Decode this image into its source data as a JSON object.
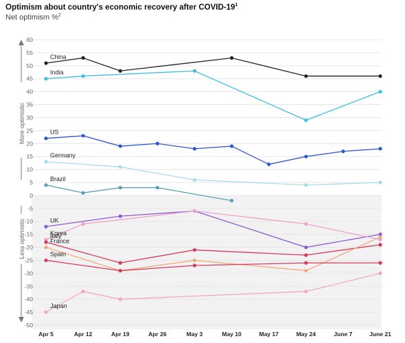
{
  "header": {
    "title": "Optimism about country's economic recovery after COVID-19",
    "title_sup": "1",
    "subtitle": "Net optimism %",
    "subtitle_sup": "2"
  },
  "chart_data": {
    "type": "line",
    "title": "Optimism about country's economic recovery after COVID-19",
    "ylabel": "Net optimism %",
    "ylim": [
      -50,
      60
    ],
    "yticks": [
      60,
      55,
      50,
      45,
      40,
      35,
      30,
      25,
      20,
      15,
      10,
      5,
      0,
      -5,
      -10,
      -15,
      -20,
      -25,
      -30,
      -35,
      -40,
      -45,
      -50
    ],
    "categories": [
      "Apr 5",
      "Apr 12",
      "Apr 19",
      "Apr 26",
      "May 3",
      "May 10",
      "May 17",
      "May 24",
      "June 7",
      "June 21"
    ],
    "side_labels": {
      "upper": "More optimistic",
      "lower": "Less optimistic"
    },
    "shading": "grey band below 0",
    "series": [
      {
        "name": "China",
        "color": "#222222",
        "values": [
          51,
          53,
          48,
          null,
          null,
          53,
          null,
          46,
          null,
          46
        ]
      },
      {
        "name": "India",
        "color": "#3bbfe0",
        "values": [
          45,
          46,
          null,
          null,
          48,
          null,
          null,
          29,
          null,
          40
        ]
      },
      {
        "name": "US",
        "color": "#2e55d0",
        "values": [
          22,
          23,
          19,
          20,
          18,
          19,
          12,
          15,
          17,
          18
        ]
      },
      {
        "name": "Germany",
        "color": "#a8dcec",
        "values": [
          13,
          null,
          11,
          null,
          6,
          null,
          null,
          4,
          null,
          5
        ]
      },
      {
        "name": "Brazil",
        "color": "#5a9db5",
        "values": [
          4,
          1,
          3,
          3,
          null,
          -2,
          null,
          null,
          null,
          null
        ]
      },
      {
        "name": "UK",
        "color": "#8a5ad0",
        "values": [
          -12,
          null,
          -8,
          null,
          -6,
          null,
          null,
          -20,
          null,
          -15
        ]
      },
      {
        "name": "Korea",
        "color": "#eea4c8",
        "values": [
          -17,
          -11,
          null,
          null,
          -6,
          null,
          null,
          -11,
          null,
          -17
        ]
      },
      {
        "name": "Italy",
        "color": "#d23a5c",
        "values": [
          -18,
          null,
          -26,
          null,
          -21,
          null,
          null,
          -23,
          null,
          -19
        ]
      },
      {
        "name": "France",
        "color": "#f2a97d",
        "values": [
          -20,
          null,
          -29,
          null,
          -25,
          null,
          null,
          -29,
          null,
          -16
        ]
      },
      {
        "name": "Spain",
        "color": "#d83a5a",
        "values": [
          -25,
          null,
          -29,
          null,
          -27,
          null,
          null,
          -26,
          null,
          -26
        ]
      },
      {
        "name": "Japan",
        "color": "#f0a8c4",
        "values": [
          -45,
          -37,
          -40,
          null,
          null,
          null,
          null,
          -37,
          null,
          -30
        ]
      }
    ]
  }
}
